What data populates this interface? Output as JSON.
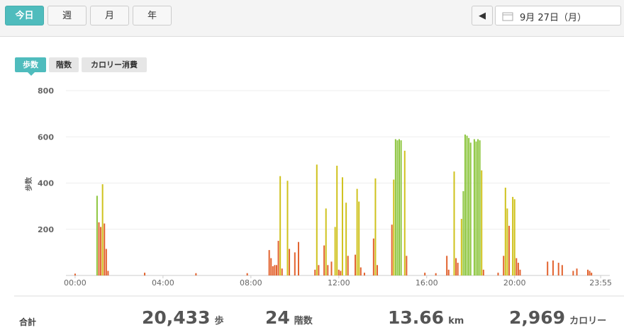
{
  "toolbar": {
    "periods": [
      "今日",
      "週",
      "月",
      "年"
    ],
    "date": "9月 27日（月）"
  },
  "tabs": [
    "歩数",
    "階数",
    "カロリー消費"
  ],
  "chart_data": {
    "type": "bar",
    "y_label": "歩数",
    "xlim": [
      -25,
      1460
    ],
    "ylim": [
      0,
      800
    ],
    "xticks": [
      {
        "value": 0,
        "label": "00:00"
      },
      {
        "value": 240,
        "label": "04:00"
      },
      {
        "value": 480,
        "label": "08:00"
      },
      {
        "value": 720,
        "label": "12:00"
      },
      {
        "value": 960,
        "label": "16:00"
      },
      {
        "value": 1200,
        "label": "20:00"
      },
      {
        "value": 1435,
        "label": "23:55"
      }
    ],
    "yticks": [
      200,
      400,
      600,
      800
    ],
    "grid": true,
    "series": [
      {
        "color": "#e2632f",
        "x": [
          0,
          65,
          70,
          80,
          85,
          90,
          190,
          330,
          470,
          530,
          535,
          540,
          545,
          550,
          555,
          565,
          585,
          600,
          610,
          655,
          665,
          680,
          690,
          700,
          720,
          725,
          745,
          765,
          780,
          790,
          815,
          825,
          865,
          905,
          955,
          985,
          1015,
          1020,
          1040,
          1045,
          1115,
          1155,
          1170,
          1185,
          1205,
          1210,
          1215,
          1290,
          1305,
          1320,
          1330,
          1360,
          1370,
          1400,
          1405,
          1410
        ],
        "values": [
          8,
          230,
          210,
          225,
          115,
          20,
          12,
          10,
          10,
          110,
          75,
          40,
          45,
          45,
          150,
          30,
          115,
          100,
          145,
          25,
          45,
          130,
          45,
          60,
          25,
          20,
          85,
          90,
          35,
          12,
          160,
          45,
          220,
          85,
          12,
          10,
          85,
          25,
          75,
          55,
          25,
          12,
          85,
          215,
          75,
          55,
          25,
          60,
          65,
          55,
          45,
          20,
          30,
          25,
          20,
          12
        ]
      },
      {
        "color": "#cfc21d",
        "x": [
          75,
          560,
          580,
          660,
          685,
          710,
          715,
          730,
          740,
          770,
          775,
          820,
          870,
          900,
          1035,
          1055,
          1110,
          1175,
          1180,
          1195,
          1200
        ],
        "values": [
          395,
          430,
          410,
          480,
          290,
          210,
          475,
          425,
          315,
          375,
          320,
          420,
          415,
          540,
          450,
          245,
          455,
          380,
          290,
          340,
          330
        ]
      },
      {
        "color": "#8dc63f",
        "x": [
          60,
          875,
          880,
          885,
          890,
          1060,
          1065,
          1070,
          1075,
          1080,
          1090,
          1095,
          1100,
          1105
        ],
        "values": [
          345,
          590,
          585,
          590,
          585,
          365,
          610,
          605,
          595,
          575,
          590,
          580,
          590,
          585
        ]
      }
    ]
  },
  "summary": [
    {
      "label": "合計"
    },
    {
      "value": "20,433",
      "unit": "歩"
    },
    {
      "value": "24",
      "unit": "階数"
    },
    {
      "value": "13.66",
      "unit": "km"
    },
    {
      "value": "2,969",
      "unit": "カロリー"
    }
  ]
}
